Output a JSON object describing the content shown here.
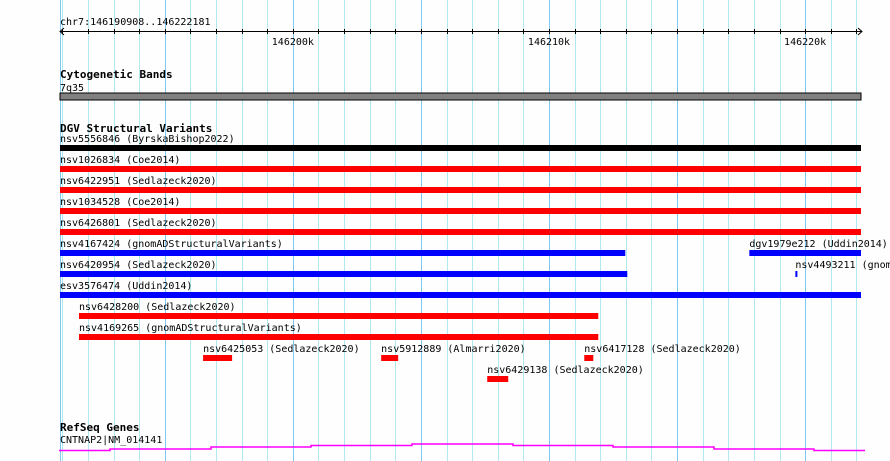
{
  "region": {
    "label": "chr7:146190908..146222181",
    "start": 146190908,
    "end": 146222181
  },
  "ruler": {
    "ticks": [
      "146200k",
      "146210k",
      "146220k"
    ],
    "tick_values": [
      146200000,
      146210000,
      146220000
    ]
  },
  "tracks": {
    "cytoband": {
      "title": "Cytogenetic Bands",
      "band": "7q35",
      "color": "#808080"
    },
    "dgv": {
      "title": "DGV Structural Variants",
      "rows": [
        [
          {
            "label": "nsv5556846 (ByrskaBishop2022)",
            "start": 146190908,
            "end": 146222181,
            "color": "#000000"
          }
        ],
        [
          {
            "label": "nsv1026834 (Coe2014)",
            "start": 146190908,
            "end": 146222181,
            "color": "#ff0000"
          }
        ],
        [
          {
            "label": "nsv6422951 (Sedlazeck2020)",
            "start": 146190908,
            "end": 146222181,
            "color": "#ff0000"
          }
        ],
        [
          {
            "label": "nsv1034528 (Coe2014)",
            "start": 146190908,
            "end": 146222181,
            "color": "#ff0000"
          }
        ],
        [
          {
            "label": "nsv6426801 (Sedlazeck2020)",
            "start": 146190908,
            "end": 146222181,
            "color": "#ff0000"
          }
        ],
        [
          {
            "label": "nsv4167424 (gnomADStructuralVariants)",
            "start": 146190908,
            "end": 146212978,
            "color": "#0000ff"
          },
          {
            "label": "dgv1979e212 (Uddin2014)",
            "start": 146217822,
            "end": 146222181,
            "color": "#0000ff"
          }
        ],
        [
          {
            "label": "nsv6420954 (Sedlazeck2020)",
            "start": 146190908,
            "end": 146213056,
            "color": "#0000ff"
          },
          {
            "label": "nsv4493211 (gnom",
            "start": 146219619,
            "end": 146219697,
            "color": "#0000ff"
          }
        ],
        [
          {
            "label": "esv3576474 (Uddin2014)",
            "start": 146190908,
            "end": 146222181,
            "color": "#0000ff"
          }
        ],
        [
          {
            "label": "nsv6428200 (Sedlazeck2020)",
            "start": 146191650,
            "end": 146211924,
            "color": "#ff0000"
          }
        ],
        [
          {
            "label": "nsv4169265 (gnomADStructuralVariants)",
            "start": 146191650,
            "end": 146211924,
            "color": "#ff0000"
          }
        ],
        [
          {
            "label": "nsv6425053 (Sedlazeck2020)",
            "start": 146196494,
            "end": 146197627,
            "color": "#ff0000"
          },
          {
            "label": "nsv5912889 (Almarri2020)",
            "start": 146203447,
            "end": 146204111,
            "color": "#ff0000"
          },
          {
            "label": "nsv6417128 (Sedlazeck2020)",
            "start": 146211377,
            "end": 146211729,
            "color": "#ff0000"
          }
        ],
        [
          {
            "label": "nsv6429138 (Sedlazeck2020)",
            "start": 146207588,
            "end": 146208408,
            "color": "#ff0000"
          }
        ]
      ]
    },
    "refseq": {
      "title": "RefSeq Genes",
      "gene": "CNTNAP2|NM_014141",
      "color": "#ff00ff"
    }
  }
}
